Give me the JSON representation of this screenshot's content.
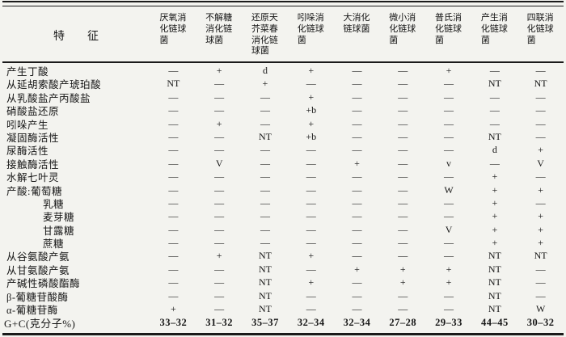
{
  "colors": {
    "paper": "#f3f3ef",
    "ink": "#1a1a1a"
  },
  "table": {
    "feature_header": "特      征",
    "columns": [
      "厌氧消化链球菌",
      "不解糖消化链球菌",
      "还原天芥菜春消化链球菌",
      "吲哚消化链球菌",
      "大消化链球菌",
      "微小消化链球菌",
      "普氏消化链球菌",
      "产生消化链球菌",
      "四联消化链球菌"
    ],
    "rows": [
      {
        "label": "产生丁酸",
        "indent": false,
        "values": [
          "—",
          "+",
          "d",
          "+",
          "—",
          "—",
          "+",
          "—",
          "—"
        ]
      },
      {
        "label": "从延胡索酸产琥珀酸",
        "indent": false,
        "values": [
          "NT",
          "—",
          "+",
          "—",
          "—",
          "—",
          "—",
          "NT",
          "NT"
        ]
      },
      {
        "label": "从乳酸盐产丙酸盐",
        "indent": false,
        "values": [
          "—",
          "—",
          "—",
          "+",
          "—",
          "—",
          "—",
          "—",
          "—"
        ]
      },
      {
        "label": "硝酸盐还原",
        "indent": false,
        "values": [
          "—",
          "—",
          "—",
          "+b",
          "—",
          "—",
          "—",
          "—",
          "—"
        ]
      },
      {
        "label": "吲哚产生",
        "indent": false,
        "values": [
          "—",
          "+",
          "—",
          "+",
          "—",
          "—",
          "—",
          "—",
          "—"
        ]
      },
      {
        "label": "凝固酶活性",
        "indent": false,
        "values": [
          "—",
          "—",
          "NT",
          "+b",
          "—",
          "—",
          "—",
          "NT",
          "—"
        ]
      },
      {
        "label": "尿酶活性",
        "indent": false,
        "values": [
          "—",
          "—",
          "—",
          "—",
          "—",
          "—",
          "—",
          "d",
          "+"
        ]
      },
      {
        "label": "接触酶活性",
        "indent": false,
        "values": [
          "—",
          "V",
          "—",
          "—",
          "+",
          "—",
          "v",
          "—",
          "V"
        ]
      },
      {
        "label": "水解七叶灵",
        "indent": false,
        "values": [
          "—",
          "—",
          "—",
          "—",
          "—",
          "—",
          "—",
          "+",
          "—"
        ]
      },
      {
        "label": "产酸:葡萄糖",
        "indent": false,
        "values": [
          "—",
          "—",
          "—",
          "—",
          "—",
          "—",
          "W",
          "+",
          "+"
        ]
      },
      {
        "label": "乳糖",
        "indent": true,
        "values": [
          "—",
          "—",
          "—",
          "—",
          "—",
          "—",
          "—",
          "+",
          "—"
        ]
      },
      {
        "label": "麦芽糖",
        "indent": true,
        "values": [
          "—",
          "—",
          "—",
          "—",
          "—",
          "—",
          "—",
          "+",
          "+"
        ]
      },
      {
        "label": "甘露糖",
        "indent": true,
        "values": [
          "—",
          "—",
          "—",
          "—",
          "—",
          "—",
          "V",
          "+",
          "+"
        ]
      },
      {
        "label": "蔗糖",
        "indent": true,
        "values": [
          "—",
          "—",
          "—",
          "—",
          "—",
          "—",
          "—",
          "+",
          "+"
        ]
      },
      {
        "label": "从谷氨酸产氨",
        "indent": false,
        "values": [
          "—",
          "+",
          "NT",
          "+",
          "—",
          "—",
          "—",
          "NT",
          "NT"
        ]
      },
      {
        "label": "从甘氨酸产氨",
        "indent": false,
        "values": [
          "—",
          "—",
          "NT",
          "—",
          "+",
          "+",
          "+",
          "NT",
          "—"
        ]
      },
      {
        "label": "产碱性磷酸酯酶",
        "indent": false,
        "values": [
          "—",
          "—",
          "NT",
          "+",
          "—",
          "+",
          "+",
          "NT",
          "—"
        ]
      },
      {
        "label": "β-葡糖苷酸酶",
        "indent": false,
        "values": [
          "—",
          "—",
          "NT",
          "—",
          "—",
          "—",
          "—",
          "NT",
          "—"
        ]
      },
      {
        "label": "α-葡糖苷酶",
        "indent": false,
        "values": [
          "+",
          "—",
          "NT",
          "—",
          "—",
          "—",
          "—",
          "NT",
          "W"
        ]
      }
    ],
    "gc_row": {
      "label": "G+C(克分子%)",
      "values": [
        "33–32",
        "31–32",
        "35–37",
        "32–34",
        "32–34",
        "27–28",
        "29–33",
        "44–45",
        "30–32"
      ]
    }
  }
}
